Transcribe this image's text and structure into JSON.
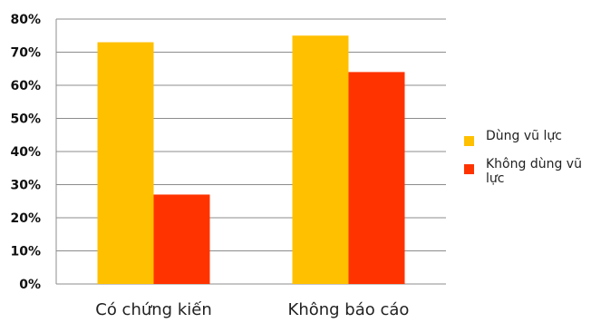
{
  "chart_data": {
    "type": "bar",
    "categories": [
      "Có chứng kiến",
      "Không báo cáo"
    ],
    "series": [
      {
        "name": "Dùng vũ lực",
        "values": [
          73,
          75
        ],
        "color": "#FFC000"
      },
      {
        "name": "Không dùng vũ lực",
        "values": [
          27,
          64
        ],
        "color": "#FF3300"
      }
    ],
    "ylim": [
      0,
      80
    ],
    "yticks": [
      "0%",
      "10%",
      "20%",
      "30%",
      "40%",
      "50%",
      "60%",
      "70%",
      "80%"
    ],
    "grid": true,
    "legend_position": "right",
    "title": "",
    "xlabel": "",
    "ylabel": ""
  }
}
